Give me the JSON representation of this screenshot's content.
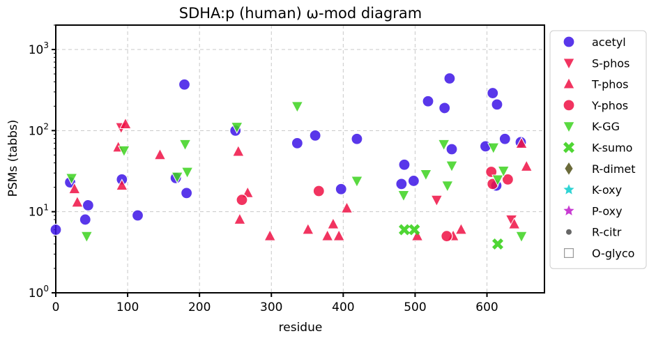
{
  "chart_data": {
    "type": "scatter",
    "title": "SDHA:p (human) ω-mod diagram",
    "xlabel": "residue",
    "ylabel": "PSMs (tabbs)",
    "xlim": [
      0,
      680
    ],
    "ylim": [
      1,
      2000
    ],
    "yscale": "log",
    "x_ticks": [
      0,
      100,
      200,
      300,
      400,
      500,
      600
    ],
    "x_tick_labels": [
      "0",
      "100",
      "200",
      "300",
      "400",
      "500",
      "600"
    ],
    "y_ticks": [
      1,
      10,
      100,
      1000
    ],
    "grid": true,
    "legend_position": "outside-right",
    "series": [
      {
        "name": "acetyl",
        "marker": "circle",
        "color": "#3c14e6",
        "points": [
          [
            0,
            6
          ],
          [
            20,
            23
          ],
          [
            41,
            8
          ],
          [
            45,
            12
          ],
          [
            92,
            25
          ],
          [
            114,
            9
          ],
          [
            167,
            26
          ],
          [
            179,
            370
          ],
          [
            182,
            17
          ],
          [
            250,
            100
          ],
          [
            336,
            70
          ],
          [
            361,
            87
          ],
          [
            397,
            19
          ],
          [
            419,
            79
          ],
          [
            481,
            22
          ],
          [
            485,
            38
          ],
          [
            498,
            24
          ],
          [
            518,
            230
          ],
          [
            541,
            190
          ],
          [
            548,
            440
          ],
          [
            551,
            59
          ],
          [
            598,
            64
          ],
          [
            608,
            290
          ],
          [
            613,
            21
          ],
          [
            614,
            210
          ],
          [
            625,
            79
          ],
          [
            647,
            72
          ]
        ]
      },
      {
        "name": "S-phos",
        "marker": "triangle-down",
        "color": "#ee1044",
        "points": [
          [
            91,
            110
          ],
          [
            530,
            14
          ],
          [
            634,
            8
          ]
        ]
      },
      {
        "name": "T-phos",
        "marker": "triangle-up",
        "color": "#ee1044",
        "points": [
          [
            26,
            19
          ],
          [
            30,
            13
          ],
          [
            87,
            62
          ],
          [
            92,
            21
          ],
          [
            97,
            120
          ],
          [
            145,
            50
          ],
          [
            254,
            55
          ],
          [
            256,
            8
          ],
          [
            267,
            17
          ],
          [
            298,
            5
          ],
          [
            351,
            6
          ],
          [
            378,
            5
          ],
          [
            386,
            7
          ],
          [
            394,
            5
          ],
          [
            405,
            11
          ],
          [
            503,
            5
          ],
          [
            553,
            5
          ],
          [
            564,
            6
          ],
          [
            638,
            7
          ],
          [
            648,
            69
          ],
          [
            655,
            36
          ]
        ]
      },
      {
        "name": "Y-phos",
        "marker": "circle",
        "color": "#ee1044",
        "points": [
          [
            259,
            14
          ],
          [
            366,
            18
          ],
          [
            544,
            5
          ],
          [
            606,
            31
          ],
          [
            608,
            22
          ],
          [
            629,
            25
          ]
        ]
      },
      {
        "name": "K-GG",
        "marker": "triangle-down",
        "color": "#3cd21e",
        "points": [
          [
            22,
            26
          ],
          [
            43,
            5
          ],
          [
            95,
            57
          ],
          [
            169,
            27
          ],
          [
            180,
            68
          ],
          [
            183,
            31
          ],
          [
            252,
            111
          ],
          [
            336,
            200
          ],
          [
            419,
            24
          ],
          [
            484,
            16
          ],
          [
            515,
            29
          ],
          [
            540,
            68
          ],
          [
            545,
            21
          ],
          [
            551,
            37
          ],
          [
            609,
            62
          ],
          [
            615,
            25
          ],
          [
            623,
            32
          ],
          [
            648,
            5
          ]
        ]
      },
      {
        "name": "K-sumo",
        "marker": "x",
        "color": "#3cd21e",
        "points": [
          [
            485,
            6
          ],
          [
            499,
            6
          ],
          [
            615,
            4
          ]
        ]
      },
      {
        "name": "R-dimet",
        "marker": "diamond",
        "color": "#6b6b3a",
        "points": []
      },
      {
        "name": "K-oxy",
        "marker": "star",
        "color": "#2fd4d4",
        "points": []
      },
      {
        "name": "P-oxy",
        "marker": "star",
        "color": "#c83cd2",
        "points": []
      },
      {
        "name": "R-citr",
        "marker": "dot",
        "color": "#666666",
        "points": []
      },
      {
        "name": "O-glyco",
        "marker": "square-open",
        "color": "#999999",
        "points": []
      }
    ]
  }
}
